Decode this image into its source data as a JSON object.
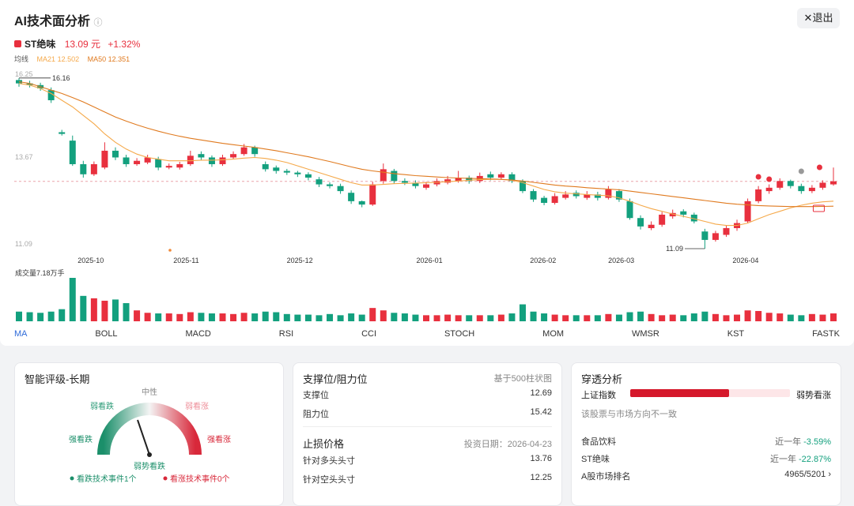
{
  "header": {
    "title": "AI技术面分析",
    "close_button": "✕退出"
  },
  "quote": {
    "name": "ST绝味",
    "price": "13.09 元",
    "change": "+1.32%"
  },
  "ma_legend": {
    "label": "均线"
  },
  "chart_data": {
    "type": "candlestick",
    "up_color": "#e8303e",
    "down_color": "#13a07e",
    "ylim": [
      11.09,
      16.25
    ],
    "yticks": [
      11.09,
      13.67,
      16.25
    ],
    "grid": false,
    "xticks": [
      {
        "value": 6.7,
        "label": "2025-10"
      },
      {
        "value": 15.6,
        "label": "2025-11"
      },
      {
        "value": 26.2,
        "label": "2025-12"
      },
      {
        "value": 38.3,
        "label": "2026-01"
      },
      {
        "value": 48.9,
        "label": "2026-02"
      },
      {
        "value": 56.2,
        "label": "2026-03"
      },
      {
        "value": 67.8,
        "label": "2026-04"
      }
    ],
    "open": [
      16.1,
      16.0,
      15.95,
      15.8,
      14.55,
      14.3,
      13.6,
      13.3,
      13.5,
      14.0,
      13.8,
      13.6,
      13.65,
      13.75,
      13.5,
      13.5,
      13.6,
      13.9,
      13.8,
      13.6,
      13.8,
      13.9,
      14.1,
      13.6,
      13.5,
      13.4,
      13.35,
      13.3,
      13.15,
      13.0,
      12.95,
      12.75,
      12.5,
      12.4,
      13.1,
      13.4,
      13.1,
      13.05,
      12.9,
      13.0,
      13.05,
      13.1,
      13.2,
      13.1,
      13.3,
      13.2,
      13.3,
      13.1,
      12.8,
      12.6,
      12.45,
      12.6,
      12.75,
      12.6,
      12.7,
      12.6,
      12.8,
      12.5,
      12.0,
      11.7,
      11.8,
      12.05,
      12.2,
      12.1,
      11.6,
      11.35,
      11.5,
      11.7,
      11.9,
      12.5,
      12.8,
      12.9,
      13.1,
      12.95,
      12.8,
      12.9,
      13.0
    ],
    "high": [
      16.16,
      16.08,
      16.02,
      15.88,
      14.62,
      14.45,
      13.7,
      13.68,
      14.25,
      14.1,
      13.88,
      13.78,
      13.88,
      13.82,
      13.62,
      13.67,
      14.0,
      13.98,
      13.86,
      13.88,
      13.98,
      14.2,
      14.15,
      13.68,
      13.56,
      13.46,
      13.4,
      13.36,
      13.22,
      13.06,
      13.02,
      12.82,
      12.52,
      13.08,
      13.62,
      13.46,
      13.18,
      13.12,
      13.08,
      13.18,
      13.25,
      13.4,
      13.26,
      13.35,
      13.38,
      13.36,
      13.36,
      13.15,
      12.86,
      12.66,
      12.74,
      12.8,
      12.82,
      12.8,
      12.78,
      12.95,
      12.86,
      12.58,
      12.08,
      11.9,
      12.18,
      12.25,
      12.26,
      12.16,
      11.68,
      11.62,
      11.78,
      11.95,
      12.58,
      12.95,
      13.0,
      13.18,
      13.14,
      13.02,
      12.98,
      13.12,
      13.5
    ],
    "low": [
      15.9,
      15.88,
      15.78,
      15.42,
      14.45,
      13.55,
      13.2,
      13.25,
      13.45,
      13.72,
      13.52,
      13.55,
      13.6,
      13.42,
      13.45,
      13.44,
      13.55,
      13.72,
      13.52,
      13.55,
      13.74,
      13.85,
      13.82,
      13.38,
      13.32,
      13.28,
      13.22,
      13.12,
      12.92,
      12.88,
      12.72,
      12.42,
      12.32,
      12.36,
      13.02,
      13.02,
      12.98,
      12.88,
      12.84,
      12.94,
      13.0,
      13.05,
      13.02,
      13.04,
      13.12,
      13.14,
      13.04,
      12.74,
      12.48,
      12.38,
      12.4,
      12.55,
      12.58,
      12.54,
      12.52,
      12.55,
      12.48,
      11.95,
      11.66,
      11.64,
      11.74,
      11.98,
      12.02,
      11.84,
      11.09,
      11.3,
      11.44,
      11.62,
      11.85,
      12.44,
      12.72,
      12.84,
      12.88,
      12.72,
      12.74,
      12.84,
      12.96
    ],
    "close": [
      16.0,
      15.95,
      15.85,
      15.5,
      14.5,
      13.6,
      13.3,
      13.6,
      14.0,
      13.8,
      13.6,
      13.7,
      13.8,
      13.5,
      13.55,
      13.6,
      13.85,
      13.8,
      13.6,
      13.8,
      13.9,
      14.1,
      13.9,
      13.45,
      13.4,
      13.35,
      13.3,
      13.2,
      13.0,
      12.95,
      12.8,
      12.5,
      12.4,
      13.0,
      13.45,
      13.1,
      13.05,
      12.95,
      13.0,
      13.1,
      13.15,
      13.2,
      13.1,
      13.25,
      13.2,
      13.3,
      13.1,
      12.8,
      12.55,
      12.45,
      12.65,
      12.7,
      12.65,
      12.7,
      12.6,
      12.85,
      12.55,
      12.0,
      11.75,
      11.8,
      12.1,
      12.15,
      12.1,
      11.9,
      11.35,
      11.55,
      11.7,
      11.85,
      12.5,
      12.85,
      12.9,
      13.1,
      12.95,
      12.8,
      12.9,
      13.05,
      13.09
    ],
    "series": [
      {
        "name": "MA21",
        "color": "#f5a94a",
        "latest": 12.502,
        "values": [
          16.0,
          15.95,
          15.85,
          15.7,
          15.5,
          15.3,
          15.05,
          14.8,
          14.5,
          14.25,
          14.05,
          13.9,
          13.8,
          13.75,
          13.7,
          13.7,
          13.7,
          13.72,
          13.72,
          13.73,
          13.75,
          13.78,
          13.8,
          13.77,
          13.72,
          13.65,
          13.55,
          13.45,
          13.35,
          13.25,
          13.15,
          13.05,
          12.98,
          12.98,
          13.0,
          13.02,
          13.03,
          13.04,
          13.05,
          13.06,
          13.08,
          13.1,
          13.12,
          13.14,
          13.15,
          13.15,
          13.12,
          13.05,
          12.95,
          12.85,
          12.78,
          12.74,
          12.72,
          12.7,
          12.68,
          12.66,
          12.6,
          12.5,
          12.38,
          12.28,
          12.2,
          12.12,
          12.05,
          11.98,
          11.9,
          11.82,
          11.78,
          11.78,
          11.85,
          11.98,
          12.1,
          12.2,
          12.3,
          12.38,
          12.44,
          12.48,
          12.502
        ]
      },
      {
        "name": "MA50",
        "color": "#e07a1f",
        "latest": 12.351,
        "values": [
          16.05,
          16.0,
          15.9,
          15.8,
          15.7,
          15.58,
          15.45,
          15.3,
          15.15,
          15.0,
          14.88,
          14.77,
          14.67,
          14.58,
          14.5,
          14.43,
          14.37,
          14.32,
          14.27,
          14.22,
          14.18,
          14.14,
          14.1,
          14.05,
          14.0,
          13.94,
          13.88,
          13.82,
          13.75,
          13.68,
          13.6,
          13.52,
          13.45,
          13.4,
          13.36,
          13.32,
          13.29,
          13.26,
          13.24,
          13.22,
          13.2,
          13.19,
          13.18,
          13.17,
          13.16,
          13.15,
          13.13,
          13.1,
          13.06,
          13.02,
          12.98,
          12.95,
          12.93,
          12.9,
          12.88,
          12.86,
          12.84,
          12.8,
          12.76,
          12.72,
          12.68,
          12.64,
          12.6,
          12.56,
          12.52,
          12.48,
          12.44,
          12.41,
          12.39,
          12.37,
          12.36,
          12.35,
          12.34,
          12.34,
          12.34,
          12.345,
          12.351
        ]
      }
    ],
    "volume": {
      "label": "成交量7.18万手",
      "ylim": [
        0,
        7.18
      ],
      "values": [
        1.6,
        1.5,
        1.4,
        1.6,
        2.0,
        7.18,
        4.2,
        3.8,
        3.4,
        3.6,
        3.0,
        1.8,
        1.4,
        1.3,
        1.3,
        1.2,
        1.5,
        1.4,
        1.3,
        1.3,
        1.2,
        1.4,
        1.3,
        1.6,
        1.5,
        1.2,
        1.1,
        1.1,
        1.0,
        1.2,
        1.0,
        1.3,
        1.1,
        2.2,
        1.8,
        1.4,
        1.3,
        1.1,
        1.0,
        1.0,
        1.1,
        1.0,
        1.0,
        1.0,
        1.0,
        1.1,
        1.3,
        2.8,
        1.6,
        1.3,
        1.1,
        1.0,
        1.0,
        1.0,
        1.0,
        1.2,
        1.1,
        1.5,
        1.6,
        1.2,
        1.0,
        1.1,
        1.0,
        1.3,
        1.6,
        1.2,
        1.0,
        1.1,
        1.8,
        1.7,
        1.4,
        1.3,
        1.1,
        1.0,
        1.2,
        1.1,
        1.3
      ]
    }
  },
  "tabs": [
    "MA",
    "BOLL",
    "MACD",
    "RSI",
    "CCI",
    "STOCH",
    "MOM",
    "WMSR",
    "KST",
    "FASTK"
  ],
  "rating": {
    "title": "智能评级-长期",
    "neutral": "中性",
    "weak_bear": "弱看跌",
    "weak_bull": "弱看涨",
    "strong_bear": "强看跌",
    "strong_bull": "强看涨",
    "result": "弱势看跌",
    "bear_events": "看跌技术事件1个",
    "bull_events": "看涨技术事件0个"
  },
  "levels": {
    "title": "支撑位/阻力位",
    "note": "基于500柱状图",
    "rows": [
      [
        "支撑位",
        "12.69"
      ],
      [
        "阻力位",
        "15.42"
      ]
    ],
    "stop_title": "止损价格",
    "stop_date": "投资日期：2026-04-23",
    "stop_rows": [
      [
        "针对多头头寸",
        "13.76"
      ],
      [
        "针对空头头寸",
        "12.25"
      ]
    ]
  },
  "penetration": {
    "title": "穿透分析",
    "index": "上证指数",
    "index_view": "弱势看涨",
    "note": "该股票与市场方向不一致",
    "rows": [
      {
        "label": "食品饮料",
        "period": "近一年",
        "change": "-3.59%"
      },
      {
        "label": "ST绝味",
        "period": "近一年",
        "change": "-22.87%"
      }
    ],
    "rank": {
      "label": "A股市场排名",
      "value": "4965/5201"
    }
  }
}
